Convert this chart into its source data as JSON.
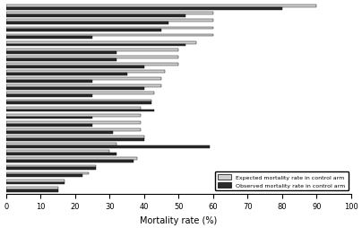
{
  "expected": [
    90,
    60,
    60,
    60,
    60,
    55,
    50,
    50,
    50,
    46,
    45,
    45,
    43,
    42,
    39,
    39,
    39,
    39,
    40,
    32,
    30,
    38,
    26,
    24,
    17,
    15
  ],
  "observed": [
    80,
    52,
    47,
    45,
    25,
    52,
    32,
    32,
    40,
    35,
    25,
    40,
    25,
    42,
    43,
    25,
    25,
    31,
    40,
    59,
    32,
    37,
    26,
    22,
    17,
    15
  ],
  "bar_color_expected": "#d0d0d0",
  "bar_color_observed": "#2a2a2a",
  "xlabel": "Mortality rate (%)",
  "xlim": [
    0,
    100
  ],
  "xticks": [
    0,
    10,
    20,
    30,
    40,
    50,
    60,
    70,
    80,
    90,
    100
  ],
  "legend_expected": "Expected mortality rate in control arm",
  "legend_observed": "Observed mortality rate in control arm",
  "background_color": "#ffffff",
  "bar_height": 0.35,
  "bar_spacing": 1.0
}
